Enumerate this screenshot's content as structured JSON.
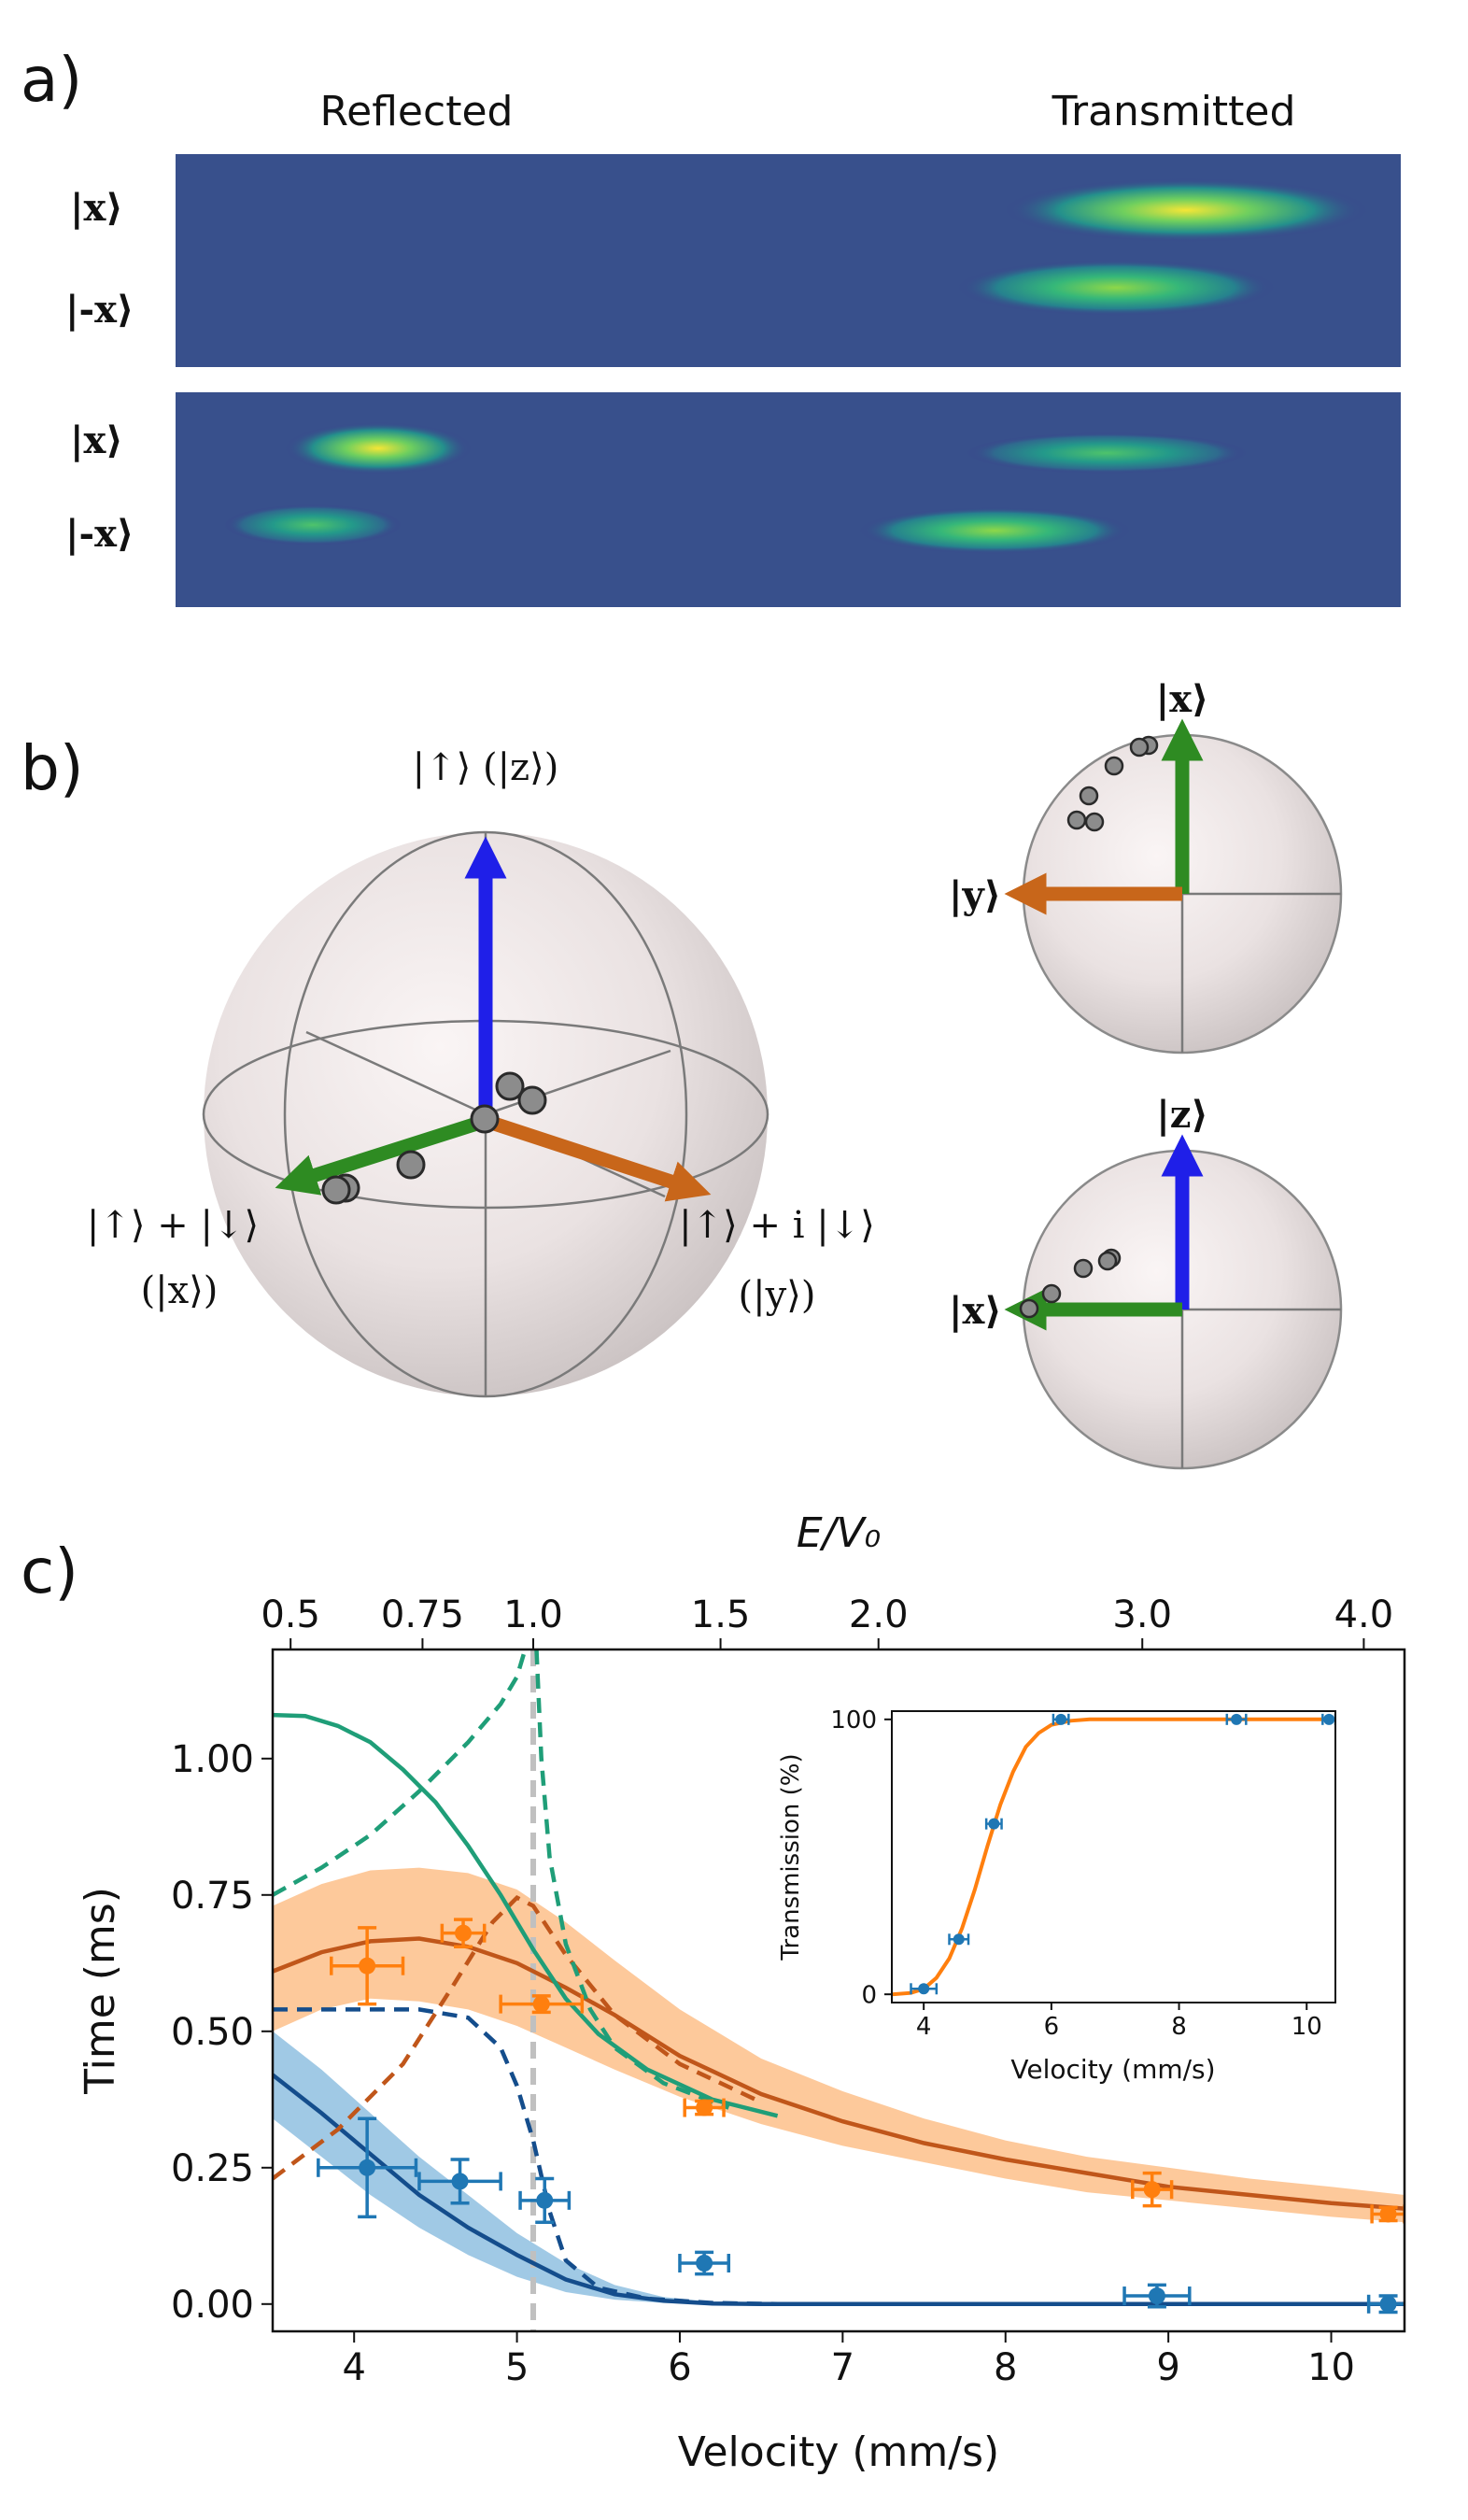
{
  "panel_a": {
    "letter": "a)",
    "col_reflected": "Reflected",
    "col_transmitted": "Transmitted",
    "row_labels": [
      "|x⟩",
      "|-x⟩",
      "|x⟩",
      "|-x⟩"
    ]
  },
  "panel_b": {
    "letter": "b)",
    "labels": {
      "z": "|↑⟩ (|z⟩)",
      "x_line1": "|↑⟩ + |↓⟩",
      "x_line2": "(|x⟩)",
      "y_line1": "|↑⟩ + i |↓⟩",
      "y_line2": "(|y⟩)",
      "top_x": "|x⟩",
      "top_y": "|y⟩",
      "bot_z": "|z⟩",
      "bot_x": "|x⟩"
    },
    "colors": {
      "z": "#1f1fe8",
      "x": "#2e8b22",
      "y": "#c8661a",
      "point": "#8c8c8c"
    }
  },
  "panel_c": {
    "letter": "c)"
  },
  "chart_data": [
    {
      "type": "line",
      "title": "",
      "xlabel": "Velocity (mm/s)",
      "ylabel": "Time (ms)",
      "top_axis_label": "E/V₀",
      "xlim": [
        3.5,
        10.45
      ],
      "ylim": [
        -0.05,
        1.2
      ],
      "x_ticks": [
        "4",
        "5",
        "6",
        "7",
        "8",
        "9",
        "10"
      ],
      "y_ticks": [
        "0.00",
        "0.25",
        "0.50",
        "0.75",
        "1.00"
      ],
      "top_ticks": [
        {
          "label": "0.5",
          "v": 3.61
        },
        {
          "label": "0.75",
          "v": 4.42
        },
        {
          "label": "1.0",
          "v": 5.1
        },
        {
          "label": "1.5",
          "v": 6.25
        },
        {
          "label": "2.0",
          "v": 7.22
        },
        {
          "label": "3.0",
          "v": 8.84
        },
        {
          "label": "4.0",
          "v": 10.2
        }
      ],
      "vline": 5.1,
      "colors": {
        "orange_points": "#ff7f0e",
        "orange_band": "#fdbf8a",
        "orange_curve": "#c0561a",
        "blue_points": "#1f77b4",
        "blue_band": "#8fbfe0",
        "blue_curve": "#144d8c",
        "green_curve": "#1f9e78",
        "vline": "#c0c0c0"
      },
      "series": [
        {
          "name": "orange data",
          "kind": "points",
          "points": [
            {
              "x": 4.08,
              "y": 0.62,
              "xerr": 0.22,
              "yerr": 0.07
            },
            {
              "x": 4.67,
              "y": 0.68,
              "xerr": 0.13,
              "yerr": 0.025
            },
            {
              "x": 5.15,
              "y": 0.55,
              "xerr": 0.25,
              "yerr": 0.015
            },
            {
              "x": 6.15,
              "y": 0.36,
              "xerr": 0.12,
              "yerr": 0.012
            },
            {
              "x": 8.9,
              "y": 0.21,
              "xerr": 0.12,
              "yerr": 0.03
            },
            {
              "x": 10.35,
              "y": 0.165,
              "xerr": 0.1,
              "yerr": 0.012
            }
          ]
        },
        {
          "name": "blue data",
          "kind": "points",
          "points": [
            {
              "x": 4.08,
              "y": 0.25,
              "xerr": 0.3,
              "yerr": 0.09
            },
            {
              "x": 4.65,
              "y": 0.225,
              "xerr": 0.25,
              "yerr": 0.04
            },
            {
              "x": 5.17,
              "y": 0.19,
              "xerr": 0.15,
              "yerr": 0.04
            },
            {
              "x": 6.15,
              "y": 0.075,
              "xerr": 0.15,
              "yerr": 0.02
            },
            {
              "x": 8.93,
              "y": 0.015,
              "xerr": 0.2,
              "yerr": 0.02
            },
            {
              "x": 10.35,
              "y": 0.0,
              "xerr": 0.12,
              "yerr": 0.015
            }
          ]
        },
        {
          "name": "orange theory band",
          "kind": "band",
          "x": [
            3.5,
            3.8,
            4.1,
            4.4,
            4.7,
            5.0,
            5.3,
            5.6,
            6.0,
            6.5,
            7.0,
            7.5,
            8.0,
            8.5,
            9.0,
            9.5,
            10.0,
            10.45
          ],
          "upper": [
            0.73,
            0.77,
            0.795,
            0.8,
            0.79,
            0.76,
            0.7,
            0.63,
            0.54,
            0.45,
            0.39,
            0.34,
            0.3,
            0.27,
            0.25,
            0.23,
            0.215,
            0.2
          ],
          "lower": [
            0.5,
            0.54,
            0.56,
            0.555,
            0.54,
            0.51,
            0.47,
            0.43,
            0.38,
            0.33,
            0.29,
            0.26,
            0.23,
            0.205,
            0.19,
            0.175,
            0.16,
            0.15
          ]
        },
        {
          "name": "orange theory",
          "kind": "line",
          "x": [
            3.5,
            3.8,
            4.1,
            4.4,
            4.7,
            5.0,
            5.3,
            5.6,
            6.0,
            6.5,
            7.0,
            7.5,
            8.0,
            8.5,
            9.0,
            9.5,
            10.0,
            10.45
          ],
          "y": [
            0.61,
            0.645,
            0.665,
            0.67,
            0.655,
            0.625,
            0.58,
            0.53,
            0.455,
            0.385,
            0.335,
            0.295,
            0.265,
            0.24,
            0.215,
            0.2,
            0.185,
            0.175
          ]
        },
        {
          "name": "blue theory band",
          "kind": "band",
          "x": [
            3.5,
            3.8,
            4.1,
            4.4,
            4.7,
            5.0,
            5.3,
            5.6,
            5.9,
            6.2,
            6.5
          ],
          "upper": [
            0.5,
            0.43,
            0.35,
            0.27,
            0.2,
            0.13,
            0.075,
            0.035,
            0.013,
            0.004,
            0.0
          ],
          "lower": [
            0.34,
            0.27,
            0.2,
            0.14,
            0.09,
            0.05,
            0.022,
            0.008,
            0.002,
            0.0,
            0.0
          ]
        },
        {
          "name": "blue theory",
          "kind": "line",
          "x": [
            3.5,
            3.8,
            4.1,
            4.4,
            4.7,
            5.0,
            5.3,
            5.6,
            5.9,
            6.2,
            6.5,
            10.45
          ],
          "y": [
            0.42,
            0.35,
            0.275,
            0.2,
            0.14,
            0.09,
            0.045,
            0.018,
            0.006,
            0.001,
            0.0,
            0.0
          ]
        },
        {
          "name": "blue dashed",
          "kind": "dashed",
          "x": [
            3.5,
            4.0,
            4.4,
            4.7,
            4.9,
            5.0,
            5.1,
            5.2,
            5.3,
            5.5,
            5.8,
            6.2,
            6.6
          ],
          "y": [
            0.54,
            0.54,
            0.54,
            0.525,
            0.47,
            0.4,
            0.3,
            0.17,
            0.08,
            0.03,
            0.01,
            0.002,
            0.0
          ]
        },
        {
          "name": "orange dashed",
          "kind": "dashed",
          "x": [
            3.5,
            3.9,
            4.3,
            4.6,
            4.85,
            5.0,
            5.1,
            5.3,
            5.6,
            6.0,
            6.5
          ],
          "y": [
            0.23,
            0.32,
            0.44,
            0.58,
            0.7,
            0.745,
            0.73,
            0.64,
            0.53,
            0.44,
            0.37
          ]
        },
        {
          "name": "green theory",
          "kind": "line",
          "x": [
            3.5,
            3.7,
            3.9,
            4.1,
            4.3,
            4.5,
            4.7,
            4.9,
            5.1,
            5.3,
            5.5,
            5.8,
            6.2,
            6.6
          ],
          "y": [
            1.08,
            1.078,
            1.06,
            1.03,
            0.98,
            0.92,
            0.84,
            0.75,
            0.65,
            0.56,
            0.495,
            0.43,
            0.375,
            0.345
          ]
        },
        {
          "name": "green dashed left",
          "kind": "dashed",
          "x": [
            3.5,
            3.8,
            4.1,
            4.4,
            4.7,
            4.9,
            5.0,
            5.05
          ],
          "y": [
            0.75,
            0.8,
            0.86,
            0.94,
            1.03,
            1.1,
            1.15,
            1.2
          ]
        },
        {
          "name": "green dashed right",
          "kind": "dashed",
          "x": [
            5.12,
            5.15,
            5.2,
            5.3,
            5.45,
            5.6,
            5.9,
            6.3
          ],
          "y": [
            1.2,
            1.0,
            0.82,
            0.66,
            0.54,
            0.47,
            0.405,
            0.36
          ]
        }
      ]
    },
    {
      "type": "line",
      "title": "",
      "xlabel": "Velocity (mm/s)",
      "ylabel": "Transmission (%)",
      "xlim": [
        3.5,
        10.45
      ],
      "ylim": [
        -3,
        103
      ],
      "x_ticks": [
        "4",
        "6",
        "8",
        "10"
      ],
      "y_ticks": [
        "0",
        "100"
      ],
      "series": [
        {
          "name": "measured",
          "kind": "points",
          "points": [
            {
              "x": 4.0,
              "y": 2,
              "xerr": 0.2
            },
            {
              "x": 4.55,
              "y": 20,
              "xerr": 0.15
            },
            {
              "x": 5.1,
              "y": 62,
              "xerr": 0.12
            },
            {
              "x": 6.15,
              "y": 100,
              "xerr": 0.12
            },
            {
              "x": 8.9,
              "y": 100,
              "xerr": 0.15
            },
            {
              "x": 10.35,
              "y": 100,
              "xerr": 0.1
            }
          ]
        },
        {
          "name": "theory",
          "kind": "line",
          "x": [
            3.5,
            3.8,
            4.0,
            4.2,
            4.4,
            4.6,
            4.8,
            5.0,
            5.2,
            5.4,
            5.6,
            5.8,
            6.0,
            6.3,
            6.6,
            7.0,
            10.45
          ],
          "y": [
            0,
            0.5,
            2,
            6,
            13,
            24,
            38,
            54,
            69,
            81,
            90,
            95,
            98,
            99.5,
            100,
            100,
            100
          ]
        }
      ]
    }
  ]
}
